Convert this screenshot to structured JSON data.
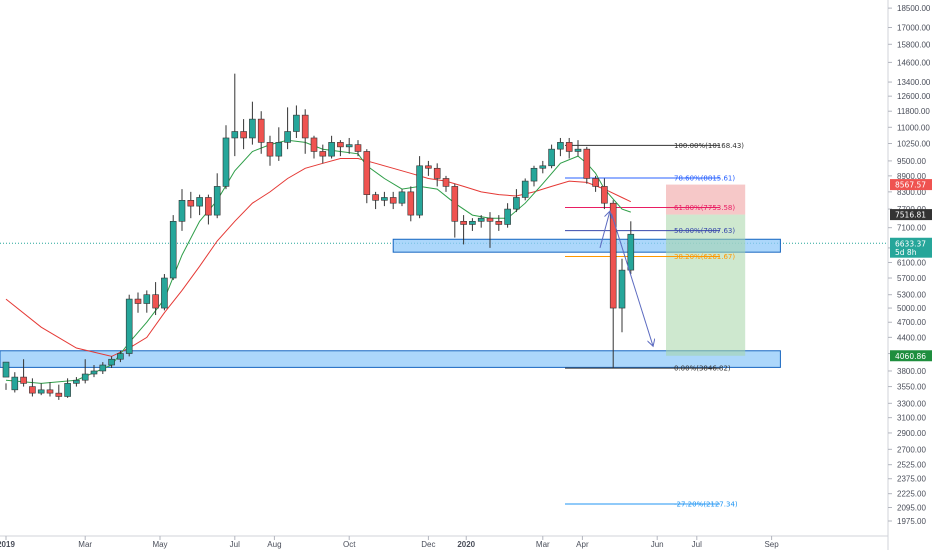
{
  "chart_data": {
    "type": "candlestick",
    "price_scale": "log",
    "ylim": [
      1850,
      19000
    ],
    "y_ticks": [
      "18500.00",
      "17000.00",
      "15800.00",
      "14600.00",
      "13400.00",
      "12600.00",
      "11800.00",
      "11000.00",
      "10250.00",
      "9500.00",
      "8900.00",
      "8300.00",
      "7700.00",
      "7100.00",
      "6500.00",
      "6100.00",
      "5700.00",
      "5300.00",
      "5000.00",
      "4700.00",
      "4400.00",
      "4100.00",
      "3800.00",
      "3550.00",
      "3300.00",
      "3100.00",
      "2900.00",
      "2700.00",
      "2525.00",
      "2375.00",
      "2225.00",
      "2095.00",
      "1975.00"
    ],
    "x_labels": [
      {
        "label": "2019",
        "week": 0
      },
      {
        "label": "Mar",
        "week": 9
      },
      {
        "label": "May",
        "week": 17.5
      },
      {
        "label": "Jul",
        "week": 26
      },
      {
        "label": "Aug",
        "week": 30.5
      },
      {
        "label": "Oct",
        "week": 39
      },
      {
        "label": "Dec",
        "week": 48
      },
      {
        "label": "2020",
        "week": 52.3
      },
      {
        "label": "Mar",
        "week": 61
      },
      {
        "label": "Apr",
        "week": 65.5
      },
      {
        "label": "Jun",
        "week": 74
      },
      {
        "label": "Jul",
        "week": 78.5
      },
      {
        "label": "Sep",
        "week": 87
      }
    ],
    "candles": [
      [
        3700,
        3950,
        3600,
        3500
      ],
      [
        3500,
        3700,
        3780,
        3460
      ],
      [
        3700,
        3600,
        4000,
        3550
      ],
      [
        3550,
        3450,
        3680,
        3400
      ],
      [
        3450,
        3500,
        3600,
        3420
      ],
      [
        3500,
        3450,
        3620,
        3400
      ],
      [
        3450,
        3400,
        3580,
        3350
      ],
      [
        3400,
        3600,
        3680,
        3380
      ],
      [
        3600,
        3650,
        3700,
        3550
      ],
      [
        3650,
        3750,
        4000,
        3600
      ],
      [
        3750,
        3800,
        3900,
        3700
      ],
      [
        3800,
        3900,
        3950,
        3750
      ],
      [
        3900,
        4000,
        4050,
        3850
      ],
      [
        4000,
        4100,
        4150,
        3950
      ],
      [
        4100,
        5200,
        5300,
        4050
      ],
      [
        5200,
        5100,
        5350,
        4900
      ],
      [
        5100,
        5300,
        5400,
        4900
      ],
      [
        5300,
        5000,
        5600,
        4850
      ],
      [
        5000,
        5700,
        5800,
        4950
      ],
      [
        5700,
        7300,
        7500,
        5650
      ],
      [
        7300,
        8000,
        8400,
        7000
      ],
      [
        8000,
        7800,
        8300,
        7400
      ],
      [
        7800,
        8100,
        8200,
        7500
      ],
      [
        8100,
        7500,
        8200,
        7200
      ],
      [
        7500,
        8500,
        9000,
        7400
      ],
      [
        8500,
        10500,
        11100,
        8400
      ],
      [
        10500,
        10800,
        13900,
        9700
      ],
      [
        10800,
        10500,
        11400,
        10000
      ],
      [
        10500,
        11400,
        12300,
        10200
      ],
      [
        11400,
        10300,
        11800,
        9800
      ],
      [
        10300,
        9700,
        10600,
        9300
      ],
      [
        9700,
        10300,
        11000,
        9500
      ],
      [
        10300,
        10800,
        12000,
        10000
      ],
      [
        10800,
        11600,
        12100,
        10500
      ],
      [
        11600,
        10500,
        11900,
        9800
      ],
      [
        10500,
        9900,
        10600,
        9600
      ],
      [
        9900,
        9700,
        10200,
        9400
      ],
      [
        9700,
        10300,
        10600,
        9600
      ],
      [
        10300,
        10100,
        10400,
        9700
      ],
      [
        10100,
        10200,
        10500,
        9800
      ],
      [
        10200,
        9900,
        10400,
        9700
      ],
      [
        9900,
        8200,
        10000,
        7900
      ],
      [
        8200,
        8000,
        8300,
        7700
      ],
      [
        8000,
        8100,
        8300,
        7800
      ],
      [
        8100,
        7900,
        8300,
        7700
      ],
      [
        7900,
        8300,
        8400,
        7800
      ],
      [
        8300,
        7500,
        8500,
        7300
      ],
      [
        7500,
        9300,
        9700,
        7400
      ],
      [
        9300,
        9200,
        9500,
        8900
      ],
      [
        9200,
        8800,
        9400,
        8500
      ],
      [
        8800,
        8500,
        8900,
        8300
      ],
      [
        8500,
        7300,
        8600,
        6800
      ],
      [
        7300,
        7200,
        7500,
        6600
      ],
      [
        7200,
        7300,
        7400,
        7000
      ],
      [
        7300,
        7400,
        7500,
        7100
      ],
      [
        7400,
        7300,
        7600,
        6500
      ],
      [
        7300,
        7200,
        7500,
        7000
      ],
      [
        7200,
        7700,
        7900,
        7100
      ],
      [
        7700,
        8100,
        8400,
        7600
      ],
      [
        8100,
        8700,
        8800,
        8000
      ],
      [
        8700,
        9200,
        9300,
        8500
      ],
      [
        9200,
        9300,
        9500,
        9000
      ],
      [
        9300,
        10000,
        10200,
        9200
      ],
      [
        10000,
        10300,
        10500,
        9700
      ],
      [
        10300,
        9900,
        10500,
        9600
      ],
      [
        9900,
        10000,
        10400,
        9700
      ],
      [
        10000,
        8800,
        10100,
        8600
      ],
      [
        8800,
        8500,
        8900,
        8300
      ],
      [
        8500,
        7900,
        8800,
        7700
      ],
      [
        7900,
        5000,
        8000,
        3850
      ],
      [
        5000,
        5900,
        6200,
        4500
      ],
      [
        5900,
        6900,
        7300,
        5800
      ]
    ],
    "ema_fast": [
      [
        0,
        3650
      ],
      [
        4,
        3600
      ],
      [
        8,
        3650
      ],
      [
        12,
        3900
      ],
      [
        14,
        4300
      ],
      [
        16,
        4700
      ],
      [
        18,
        5200
      ],
      [
        20,
        6300
      ],
      [
        22,
        7300
      ],
      [
        24,
        8000
      ],
      [
        26,
        9100
      ],
      [
        28,
        9900
      ],
      [
        30,
        10200
      ],
      [
        32,
        10400
      ],
      [
        34,
        10300
      ],
      [
        36,
        10000
      ],
      [
        38,
        9900
      ],
      [
        40,
        9800
      ],
      [
        41,
        9300
      ],
      [
        43,
        8800
      ],
      [
        45,
        8400
      ],
      [
        47,
        8500
      ],
      [
        49,
        8400
      ],
      [
        51,
        7900
      ],
      [
        53,
        7500
      ],
      [
        55,
        7400
      ],
      [
        57,
        7400
      ],
      [
        59,
        7900
      ],
      [
        61,
        8600
      ],
      [
        63,
        9400
      ],
      [
        65,
        9700
      ],
      [
        66,
        9400
      ],
      [
        67,
        9000
      ],
      [
        68,
        8400
      ],
      [
        70,
        7700
      ],
      [
        71,
        7600
      ]
    ],
    "ema_slow": [
      [
        0,
        5200
      ],
      [
        4,
        4600
      ],
      [
        8,
        4200
      ],
      [
        12,
        4050
      ],
      [
        14,
        4200
      ],
      [
        16,
        4400
      ],
      [
        18,
        4900
      ],
      [
        20,
        5400
      ],
      [
        22,
        6000
      ],
      [
        24,
        6700
      ],
      [
        26,
        7300
      ],
      [
        28,
        7900
      ],
      [
        30,
        8300
      ],
      [
        32,
        8800
      ],
      [
        34,
        9200
      ],
      [
        36,
        9400
      ],
      [
        38,
        9600
      ],
      [
        40,
        9600
      ],
      [
        42,
        9400
      ],
      [
        44,
        9200
      ],
      [
        46,
        9000
      ],
      [
        48,
        8800
      ],
      [
        50,
        8700
      ],
      [
        52,
        8500
      ],
      [
        54,
        8300
      ],
      [
        56,
        8200
      ],
      [
        58,
        8150
      ],
      [
        60,
        8300
      ],
      [
        62,
        8500
      ],
      [
        64,
        8700
      ],
      [
        66,
        8650
      ],
      [
        68,
        8400
      ],
      [
        70,
        8100
      ],
      [
        71,
        7950
      ]
    ],
    "fib_levels": [
      {
        "label": "100.00%(10168.43)",
        "price": 10168.43,
        "color": "#333333"
      },
      {
        "label": "78.60%(8815.61)",
        "price": 8815.61,
        "color": "#2962ff"
      },
      {
        "label": "61.80%(7753.58)",
        "price": 7753.58,
        "color": "#e91e63"
      },
      {
        "label": "50.00%(7007.63)",
        "price": 7007.63,
        "color": "#3949ab"
      },
      {
        "label": "38.20%(6261.67)",
        "price": 6261.67,
        "color": "#ff9800"
      },
      {
        "label": "0.00%(3846.82)",
        "price": 3846.82,
        "color": "#333333"
      },
      {
        "label": "-27.20%(2127.34)",
        "price": 2127.34,
        "color": "#2196f3"
      }
    ],
    "zones": [
      {
        "kind": "support",
        "top": 6750,
        "bottom": 6380,
        "from_week": 44,
        "to_week": 88,
        "color": "#90caf9"
      },
      {
        "kind": "support",
        "top": 4150,
        "bottom": 3860,
        "from_week": 0,
        "to_week": 88,
        "color": "#90caf9"
      }
    ],
    "position": {
      "entry": 7516.81,
      "stop": 8567.57,
      "target": 4060.86,
      "from_week": 75,
      "to_week": 84
    },
    "price_tags": [
      {
        "text": "8567.57",
        "price": 8567.57,
        "bg": "#ef5350"
      },
      {
        "text": "7516.81",
        "price": 7516.81,
        "bg": "#333333"
      },
      {
        "text": "6633.37",
        "price": 6633.37,
        "bg": "#26a69a"
      },
      {
        "text": "5d 8h",
        "price": 6380,
        "bg": "#26a69a"
      },
      {
        "text": "4060.86",
        "price": 4060.86,
        "bg": "#1e8e3e"
      }
    ],
    "current_price": 6633.37,
    "arrows": [
      {
        "from": [
          67.5,
          6500
        ],
        "to": [
          68.6,
          7600
        ]
      },
      {
        "from": [
          68.8,
          7550
        ],
        "to": [
          73.5,
          4250
        ]
      }
    ],
    "march_wick_bottom": 3846.82
  }
}
